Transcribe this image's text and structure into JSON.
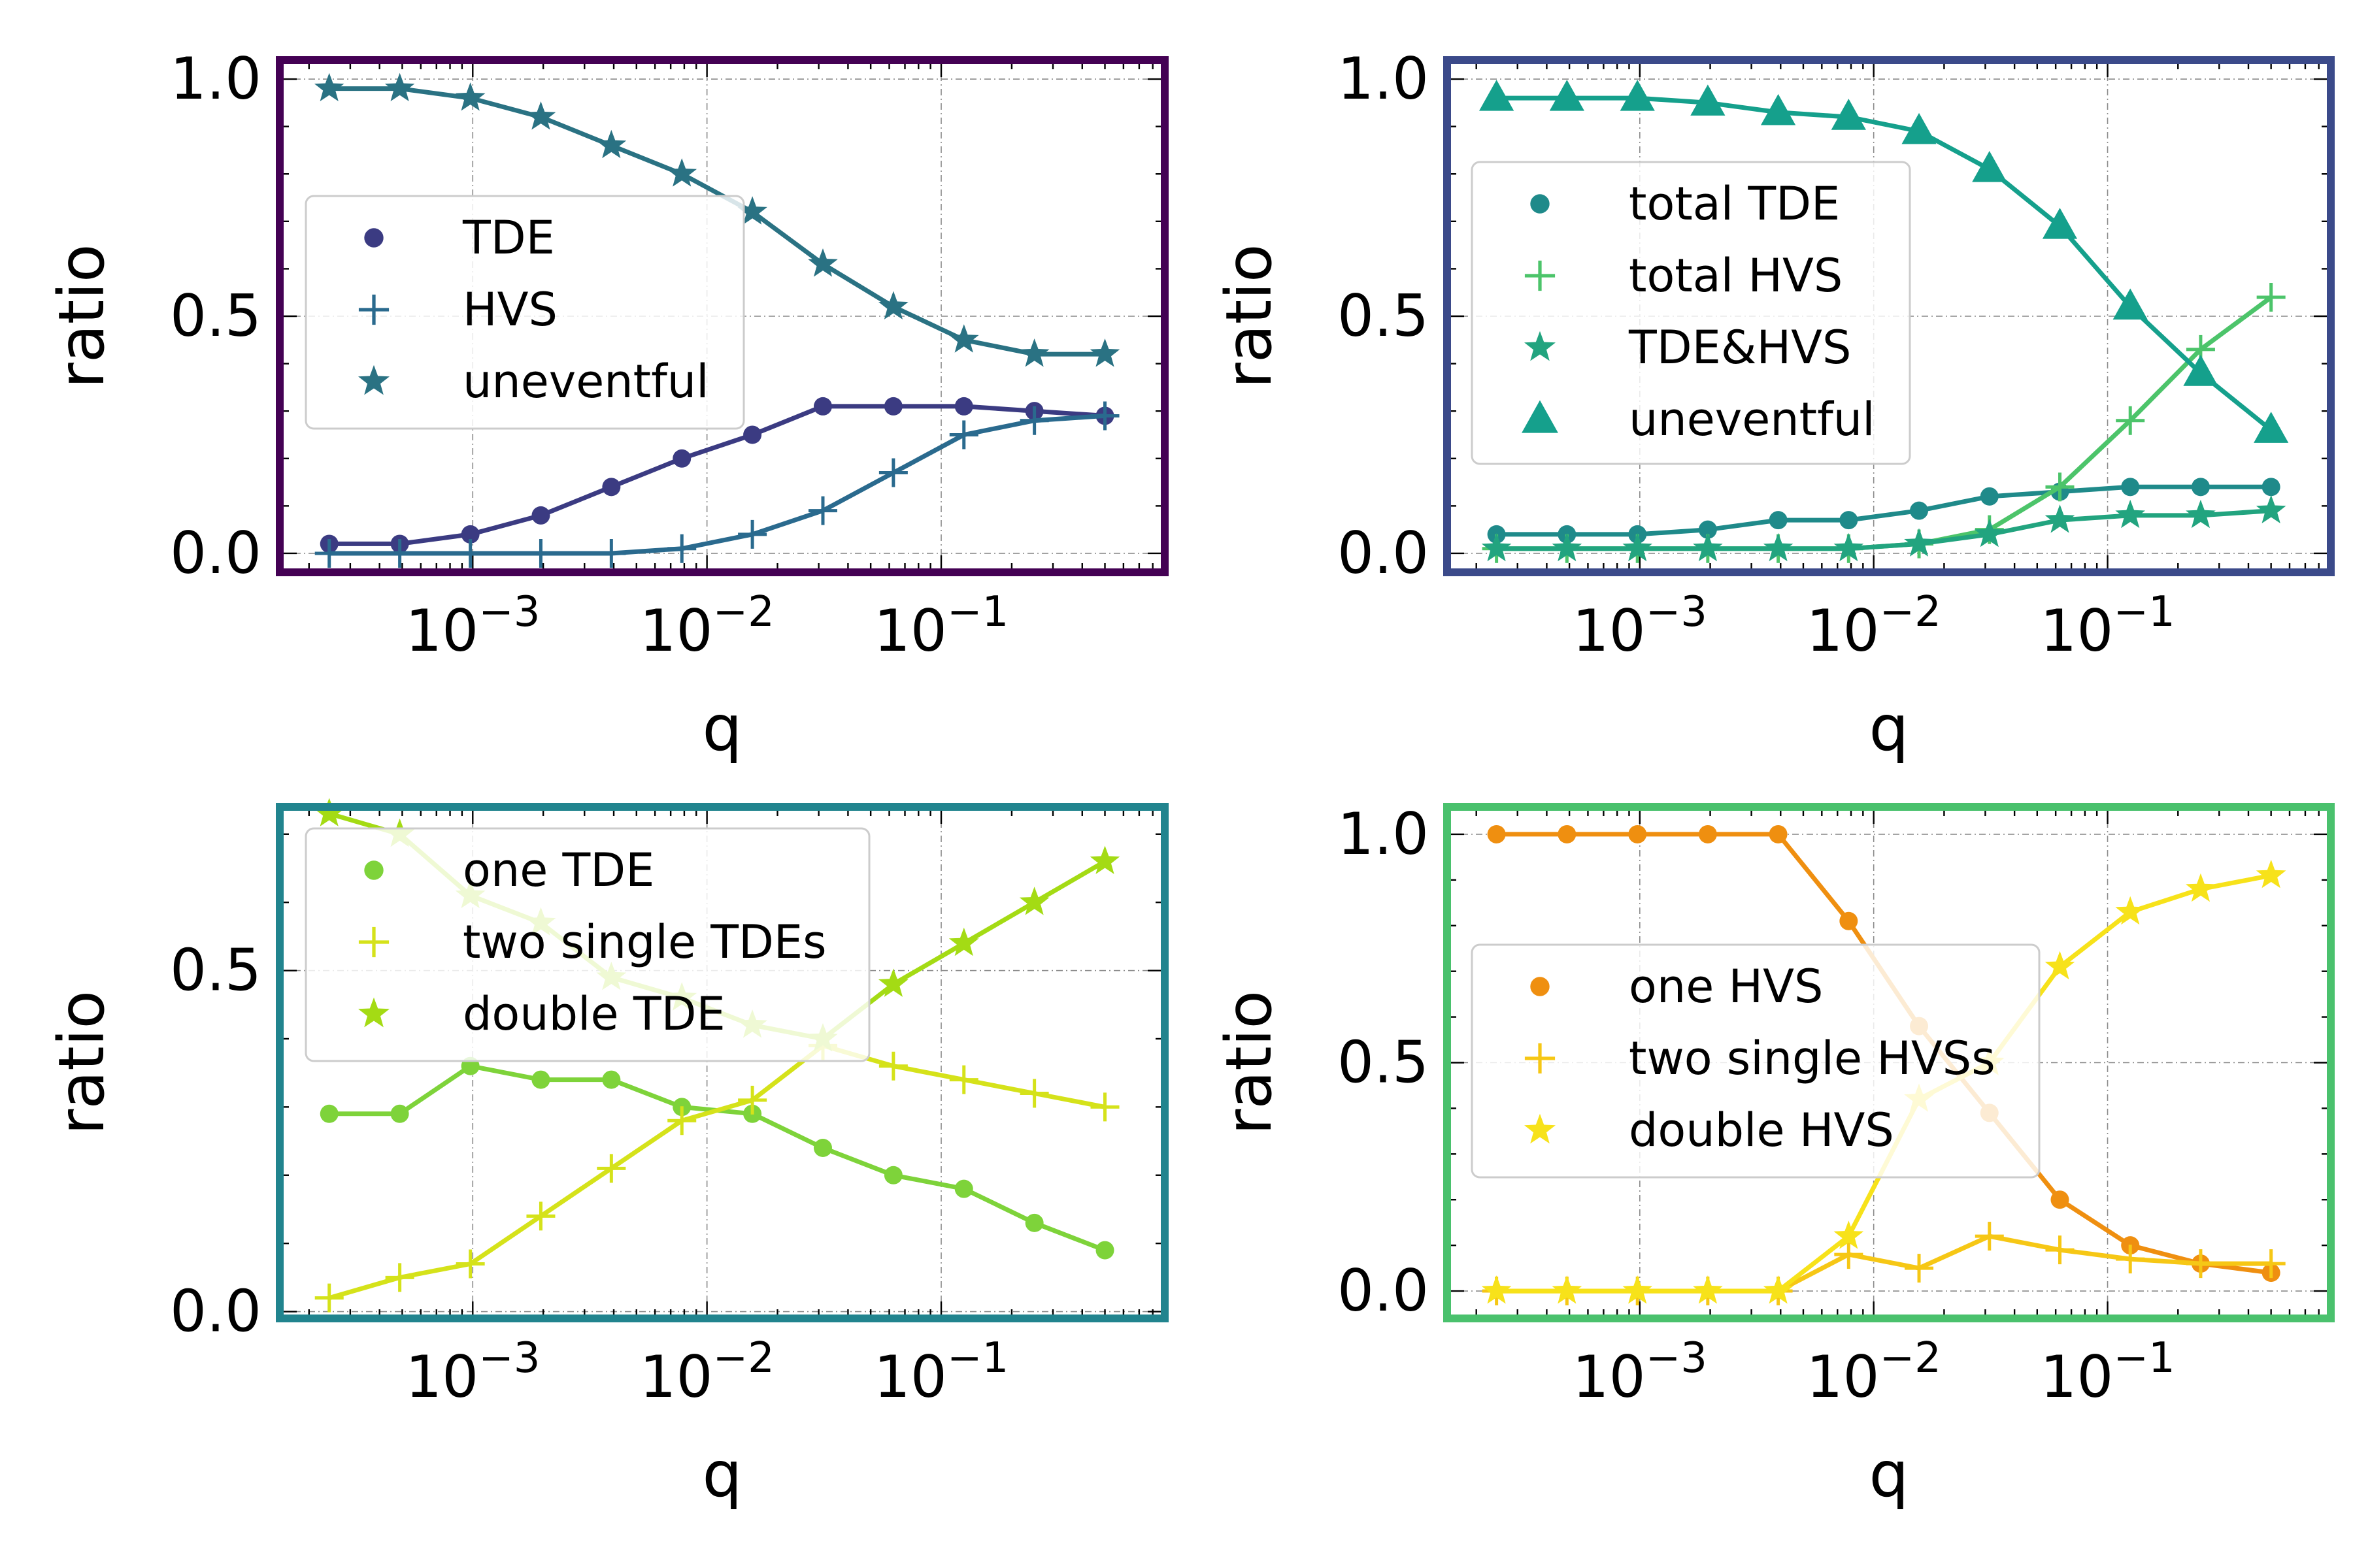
{
  "chart_data": [
    {
      "type": "line",
      "xscale": "log",
      "xlabel": "q",
      "ylabel": "ratio",
      "xlim": [
        0.00015,
        0.9
      ],
      "ylim": [
        -0.04,
        1.04
      ],
      "x_ticks": [
        {
          "value": 0.001,
          "base": "10",
          "exp": "−3"
        },
        {
          "value": 0.01,
          "base": "10",
          "exp": "−2"
        },
        {
          "value": 0.1,
          "base": "10",
          "exp": "−1"
        }
      ],
      "y_ticks": [
        {
          "value": 0.0,
          "label": "0.0"
        },
        {
          "value": 0.5,
          "label": "0.5"
        },
        {
          "value": 1.0,
          "label": "1.0"
        }
      ],
      "frame_color": "#440154",
      "legend_position": "center-left",
      "x": [
        0.000244,
        0.000488,
        0.000977,
        0.001953,
        0.003906,
        0.007813,
        0.015625,
        0.03125,
        0.0625,
        0.125,
        0.25,
        0.5
      ],
      "series": [
        {
          "name": "TDE",
          "marker": "dot",
          "color": "#3b3b82",
          "values": [
            0.02,
            0.02,
            0.04,
            0.08,
            0.14,
            0.2,
            0.25,
            0.31,
            0.31,
            0.31,
            0.3,
            0.29
          ]
        },
        {
          "name": "HVS",
          "marker": "plus",
          "color": "#2a6a8e",
          "values": [
            0.0,
            0.0,
            0.0,
            0.0,
            0.0,
            0.01,
            0.04,
            0.09,
            0.17,
            0.25,
            0.28,
            0.29
          ]
        },
        {
          "name": "uneventful",
          "marker": "star",
          "color": "#2a7283",
          "values": [
            0.98,
            0.98,
            0.96,
            0.92,
            0.86,
            0.8,
            0.72,
            0.61,
            0.52,
            0.45,
            0.42,
            0.42
          ]
        }
      ]
    },
    {
      "type": "line",
      "xscale": "log",
      "xlabel": "q",
      "ylabel": "ratio",
      "xlim": [
        0.00015,
        0.9
      ],
      "ylim": [
        -0.04,
        1.04
      ],
      "x_ticks": [
        {
          "value": 0.001,
          "base": "10",
          "exp": "−3"
        },
        {
          "value": 0.01,
          "base": "10",
          "exp": "−2"
        },
        {
          "value": 0.1,
          "base": "10",
          "exp": "−1"
        }
      ],
      "y_ticks": [
        {
          "value": 0.0,
          "label": "0.0"
        },
        {
          "value": 0.5,
          "label": "0.5"
        },
        {
          "value": 1.0,
          "label": "1.0"
        }
      ],
      "frame_color": "#3b4a8a",
      "legend_position": "center-left",
      "x": [
        0.000244,
        0.000488,
        0.000977,
        0.001953,
        0.003906,
        0.007813,
        0.015625,
        0.03125,
        0.0625,
        0.125,
        0.25,
        0.5
      ],
      "series": [
        {
          "name": "total TDE",
          "marker": "dot",
          "color": "#1f8a8a",
          "values": [
            0.04,
            0.04,
            0.04,
            0.05,
            0.07,
            0.07,
            0.09,
            0.12,
            0.13,
            0.14,
            0.14,
            0.14
          ]
        },
        {
          "name": "total HVS",
          "marker": "plus",
          "color": "#4cc46a",
          "values": [
            0.01,
            0.01,
            0.01,
            0.01,
            0.01,
            0.01,
            0.02,
            0.05,
            0.14,
            0.28,
            0.43,
            0.54
          ]
        },
        {
          "name": "TDE&HVS",
          "marker": "star",
          "color": "#22a47f",
          "values": [
            0.01,
            0.01,
            0.01,
            0.01,
            0.01,
            0.01,
            0.02,
            0.04,
            0.07,
            0.08,
            0.08,
            0.09
          ]
        },
        {
          "name": "uneventful",
          "marker": "triangle",
          "color": "#15a08c",
          "values": [
            0.96,
            0.96,
            0.96,
            0.95,
            0.93,
            0.92,
            0.89,
            0.81,
            0.69,
            0.52,
            0.38,
            0.26
          ]
        }
      ]
    },
    {
      "type": "line",
      "xscale": "log",
      "xlabel": "q",
      "ylabel": "ratio",
      "xlim": [
        0.00015,
        0.9
      ],
      "ylim": [
        -0.01,
        0.74
      ],
      "x_ticks": [
        {
          "value": 0.001,
          "base": "10",
          "exp": "−3"
        },
        {
          "value": 0.01,
          "base": "10",
          "exp": "−2"
        },
        {
          "value": 0.1,
          "base": "10",
          "exp": "−1"
        }
      ],
      "y_ticks": [
        {
          "value": 0.0,
          "label": "0.0"
        },
        {
          "value": 0.5,
          "label": "0.5"
        }
      ],
      "frame_color": "#21848e",
      "legend_position": "top-left",
      "x": [
        0.000244,
        0.000488,
        0.000977,
        0.001953,
        0.003906,
        0.007813,
        0.015625,
        0.03125,
        0.0625,
        0.125,
        0.25,
        0.5
      ],
      "series": [
        {
          "name": "one TDE",
          "marker": "dot",
          "color": "#7ed33a",
          "values": [
            0.29,
            0.29,
            0.36,
            0.34,
            0.34,
            0.3,
            0.29,
            0.24,
            0.2,
            0.18,
            0.13,
            0.09
          ]
        },
        {
          "name": "two single TDEs",
          "marker": "plus",
          "color": "#d5e21a",
          "values": [
            0.02,
            0.05,
            0.07,
            0.14,
            0.21,
            0.28,
            0.31,
            0.39,
            0.36,
            0.34,
            0.32,
            0.3
          ]
        },
        {
          "name": "double TDE",
          "marker": "star",
          "color": "#a4db14",
          "values": [
            0.73,
            0.7,
            0.61,
            0.57,
            0.49,
            0.46,
            0.42,
            0.4,
            0.48,
            0.54,
            0.6,
            0.66
          ]
        }
      ]
    },
    {
      "type": "line",
      "xscale": "log",
      "xlabel": "q",
      "ylabel": "ratio",
      "xlim": [
        0.00015,
        0.9
      ],
      "ylim": [
        -0.06,
        1.06
      ],
      "x_ticks": [
        {
          "value": 0.001,
          "base": "10",
          "exp": "−3"
        },
        {
          "value": 0.01,
          "base": "10",
          "exp": "−2"
        },
        {
          "value": 0.1,
          "base": "10",
          "exp": "−1"
        }
      ],
      "y_ticks": [
        {
          "value": 0.0,
          "label": "0.0"
        },
        {
          "value": 0.5,
          "label": "0.5"
        },
        {
          "value": 1.0,
          "label": "1.0"
        }
      ],
      "frame_color": "#4ac16d",
      "legend_position": "center-left",
      "x": [
        0.000244,
        0.000488,
        0.000977,
        0.001953,
        0.003906,
        0.007813,
        0.015625,
        0.03125,
        0.0625,
        0.125,
        0.25,
        0.5
      ],
      "series": [
        {
          "name": "one HVS",
          "marker": "dot",
          "color": "#ef8f10",
          "values": [
            1.0,
            1.0,
            1.0,
            1.0,
            1.0,
            0.81,
            0.58,
            0.39,
            0.2,
            0.1,
            0.06,
            0.04
          ]
        },
        {
          "name": "two single HVSs",
          "marker": "plus",
          "color": "#f6c715",
          "values": [
            0.0,
            0.0,
            0.0,
            0.0,
            0.0,
            0.08,
            0.05,
            0.12,
            0.09,
            0.07,
            0.06,
            0.06
          ]
        },
        {
          "name": "double HVS",
          "marker": "star",
          "color": "#f7e21a",
          "values": [
            0.0,
            0.0,
            0.0,
            0.0,
            0.0,
            0.12,
            0.42,
            0.5,
            0.71,
            0.83,
            0.88,
            0.91
          ]
        }
      ]
    }
  ]
}
